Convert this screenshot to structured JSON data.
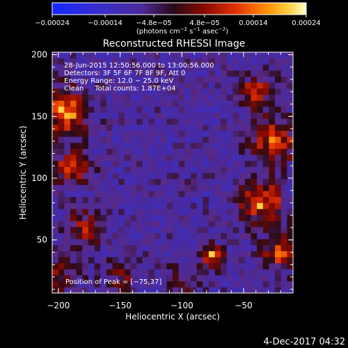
{
  "chart_data": {
    "type": "heatmap",
    "title": "Reconstructed RHESSI Image",
    "xlabel": "Heliocentric X (arcsec)",
    "ylabel": "Heliocentric Y (arcsec)",
    "xlim": [
      -205,
      -10
    ],
    "ylim": [
      7,
      202
    ],
    "xticks": [
      -200,
      -150,
      -100,
      -50
    ],
    "xtick_labels": [
      "−200",
      "−150",
      "−100",
      "−50"
    ],
    "yticks": [
      50,
      100,
      150,
      200
    ],
    "ytick_labels": [
      "50",
      "100",
      "150",
      "200"
    ],
    "colorbar": {
      "ticks": [
        -0.00024,
        -0.00014,
        -4.8e-05,
        4.8e-05,
        0.00014,
        0.00024
      ],
      "tick_labels": [
        "−0.00024",
        "−0.00014",
        "−4.8e−05",
        "4.8e−05",
        "0.00014",
        "0.00024"
      ],
      "range": [
        -0.00024,
        0.00024
      ],
      "unit_text": "(photons cm",
      "unit_parts": [
        "(photons cm",
        "−2",
        " s",
        "−1",
        " asec",
        "−2",
        ")"
      ]
    },
    "annotations": [
      "28-Jun-2015 12:50:56.000 to 13:00:56.000",
      "Detectors: 3F 5F 6F 7F 8F 9F, Att 0",
      "Energy Range: 12.0 − 25.0 keV",
      "Clean     Total counts: 1.87E+04"
    ],
    "peak_label": "Position of Peak = [−75,37]",
    "peak": [
      -75,
      37
    ],
    "sources": [
      {
        "x": -195,
        "y": 155,
        "amp": 0.00022,
        "sigma": 12
      },
      {
        "x": -190,
        "y": 110,
        "amp": 0.00016,
        "sigma": 10
      },
      {
        "x": -180,
        "y": 60,
        "amp": 0.00012,
        "sigma": 10
      },
      {
        "x": -200,
        "y": 20,
        "amp": 0.0001,
        "sigma": 10
      },
      {
        "x": -25,
        "y": 130,
        "amp": 0.00018,
        "sigma": 12
      },
      {
        "x": -35,
        "y": 80,
        "amp": 0.0002,
        "sigma": 12
      },
      {
        "x": -20,
        "y": 40,
        "amp": 0.00016,
        "sigma": 10
      },
      {
        "x": -40,
        "y": 170,
        "amp": 0.00014,
        "sigma": 10
      },
      {
        "x": -75,
        "y": 37,
        "amp": 0.00024,
        "sigma": 6
      },
      {
        "x": -150,
        "y": 20,
        "amp": 8e-05,
        "sigma": 10
      },
      {
        "x": -100,
        "y": 15,
        "amp": 7e-05,
        "sigma": 10
      }
    ],
    "colormap": [
      "#1428ff",
      "#3a2ec8",
      "#4b2a9a",
      "#5a2a88",
      "#2a0a18",
      "#8a0a00",
      "#e03000",
      "#ff8c00",
      "#ffd040",
      "#ffffc8"
    ]
  },
  "footer": {
    "date": "4-Dec-2017 04:32"
  }
}
